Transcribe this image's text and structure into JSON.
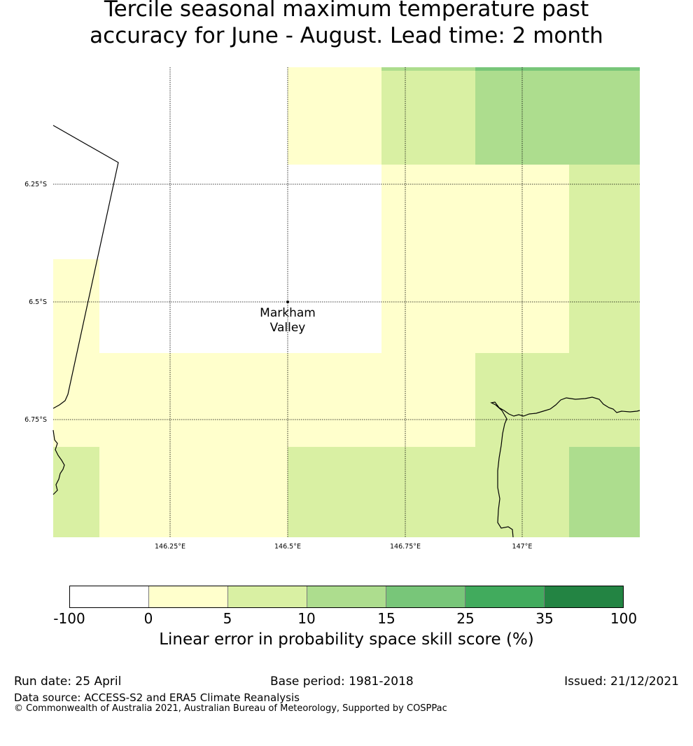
{
  "title_line1": "Tercile seasonal maximum temperature past",
  "title_line2": "accuracy for June - August. Lead time: 2 month",
  "map": {
    "lon_labels": [
      "146.25°E",
      "146.5°E",
      "146.75°E",
      "147°E"
    ],
    "lat_labels": [
      "6.25°S",
      "6.5°S",
      "6.75°S"
    ],
    "place": {
      "name_line1": "Markham",
      "name_line2": "Valley"
    }
  },
  "colorbar": {
    "ticks": [
      "-100",
      "0",
      "5",
      "10",
      "15",
      "25",
      "35",
      "100"
    ],
    "colors": [
      "#ffffff",
      "#ffffcc",
      "#d9f0a3",
      "#addd8e",
      "#78c679",
      "#41ab5d",
      "#238443"
    ],
    "label": "Linear error in probability space skill score (%)"
  },
  "footer": {
    "run_date": "Run date: 25 April",
    "base_period": "Base period: 1981-2018",
    "issued": "Issued: 21/12/2021",
    "data_source": "Data source: ACCESS-S2 and ERA5 Climate Reanalysis",
    "copyright": "© Commonwealth of Australia 2021, Australian Bureau of Meteorology, Supported by COSPPac"
  }
}
